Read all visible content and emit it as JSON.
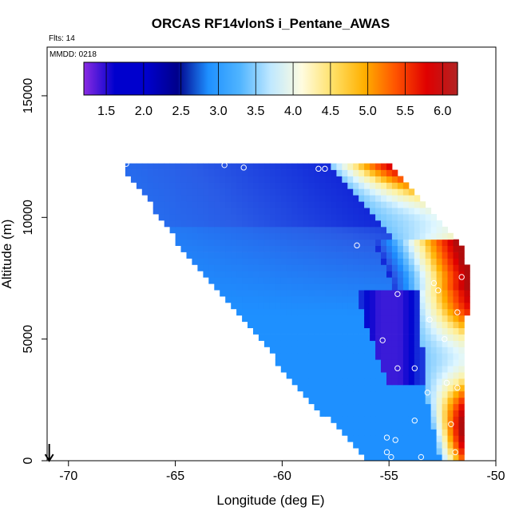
{
  "chart_data": {
    "type": "heatmap",
    "title": "ORCAS RF14vlonS i_Pentane_AWAS",
    "flights_label": "Flts: 14",
    "date_label": "MMDD: 0218",
    "xlabel": "Longitude (deg E)",
    "ylabel": "Altitude (m)",
    "xlim": [
      -71,
      -50
    ],
    "ylim": [
      0,
      17000
    ],
    "x_ticks": [
      "-70",
      "-65",
      "-60",
      "-55",
      "-50"
    ],
    "y_ticks": [
      "0",
      "5000",
      "10000",
      "15000"
    ],
    "colorbar": {
      "ticks": [
        "1.5",
        "2.0",
        "2.5",
        "3.0",
        "3.5",
        "4.0",
        "4.5",
        "5.0",
        "5.5",
        "6.0"
      ],
      "range": [
        1.2,
        6.2
      ],
      "colors": [
        "#8a2be2",
        "#0000cd",
        "#0000cd",
        "#00008b",
        "#1e90ff",
        "#87cefa",
        "#e0ffff",
        "#ffffe0",
        "#ffd700",
        "#ffa500",
        "#ff4500",
        "#dc0000",
        "#b22222"
      ]
    },
    "field_profile": [
      {
        "alt": 12100,
        "west_lon": -67.3,
        "east_lon": -55.1
      },
      {
        "alt": 9000,
        "west_lon": -64.8,
        "east_lon": -51.8
      },
      {
        "alt": 7600,
        "west_lon": -63.5,
        "east_lon": -51.3
      },
      {
        "alt": 5000,
        "west_lon": -61.0,
        "east_lon": -51.6
      },
      {
        "alt": 2500,
        "west_lon": -58.6,
        "east_lon": -51.7
      },
      {
        "alt": 0,
        "west_lon": -55.8,
        "east_lon": -51.7
      }
    ],
    "sample_points": [
      {
        "lon": -67.3,
        "alt": 12200
      },
      {
        "lon": -62.7,
        "alt": 12150
      },
      {
        "lon": -61.8,
        "alt": 12050
      },
      {
        "lon": -58.3,
        "alt": 12000
      },
      {
        "lon": -58.0,
        "alt": 12000
      },
      {
        "lon": -56.5,
        "alt": 8850
      },
      {
        "lon": -52.9,
        "alt": 7300
      },
      {
        "lon": -52.7,
        "alt": 7000
      },
      {
        "lon": -51.6,
        "alt": 7550
      },
      {
        "lon": -54.6,
        "alt": 6850
      },
      {
        "lon": -51.8,
        "alt": 6100
      },
      {
        "lon": -53.1,
        "alt": 5800
      },
      {
        "lon": -52.4,
        "alt": 5000
      },
      {
        "lon": -55.3,
        "alt": 4950
      },
      {
        "lon": -54.6,
        "alt": 3800
      },
      {
        "lon": -53.8,
        "alt": 3800
      },
      {
        "lon": -52.3,
        "alt": 3200
      },
      {
        "lon": -51.8,
        "alt": 3000
      },
      {
        "lon": -53.2,
        "alt": 2800
      },
      {
        "lon": -53.8,
        "alt": 1650
      },
      {
        "lon": -52.1,
        "alt": 1500
      },
      {
        "lon": -55.1,
        "alt": 950
      },
      {
        "lon": -54.7,
        "alt": 850
      },
      {
        "lon": -55.1,
        "alt": 350
      },
      {
        "lon": -54.9,
        "alt": 150
      },
      {
        "lon": -53.5,
        "alt": 150
      },
      {
        "lon": -51.9,
        "alt": 350
      }
    ],
    "flight_track_marker": {
      "lon": -70.9,
      "alt": 0,
      "symbol": "arrow-down"
    },
    "legend": "colorbar-top"
  }
}
